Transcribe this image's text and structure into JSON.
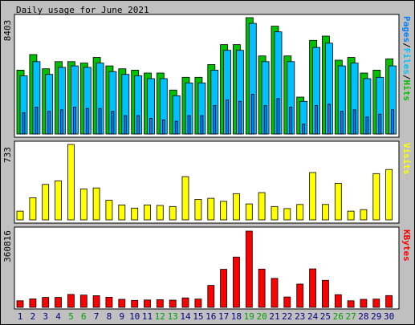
{
  "chart_data": {
    "title": "Daily usage for June 2021",
    "x_labels": [
      "1",
      "2",
      "3",
      "4",
      "5",
      "6",
      "7",
      "8",
      "9",
      "10",
      "11",
      "12",
      "13",
      "14",
      "15",
      "16",
      "17",
      "18",
      "19",
      "20",
      "21",
      "22",
      "23",
      "24",
      "25",
      "26",
      "27",
      "28",
      "29",
      "30"
    ],
    "weekend_days": [
      5,
      6,
      12,
      13,
      19,
      20,
      26,
      27
    ],
    "panels": [
      {
        "type": "bar",
        "max_label": "8403",
        "series": [
          {
            "name": "Hits",
            "color": "#00c000",
            "values": [
              4500,
              5600,
              4600,
              5100,
              5100,
              5000,
              5400,
              4800,
              4600,
              4500,
              4300,
              4300,
              3100,
              4000,
              4000,
              4900,
              6300,
              6300,
              8200,
              5500,
              7600,
              5500,
              2600,
              6600,
              6900,
              5200,
              5400,
              4300,
              4500,
              5300
            ]
          },
          {
            "name": "Files",
            "color": "#00c0ff",
            "values": [
              4100,
              5100,
              4200,
              4700,
              4800,
              4700,
              5000,
              4400,
              4200,
              4100,
              3900,
              3900,
              2700,
              3600,
              3600,
              4500,
              5900,
              5900,
              7800,
              5100,
              7200,
              5100,
              2300,
              6100,
              6400,
              4800,
              5000,
              3900,
              4000,
              4800
            ]
          },
          {
            "name": "Pages",
            "color": "#0080ff",
            "values": [
              1500,
              1900,
              1600,
              1700,
              1900,
              1800,
              1800,
              1600,
              1300,
              1300,
              1100,
              1000,
              900,
              1300,
              1300,
              2000,
              2400,
              2300,
              2800,
              2000,
              2500,
              1900,
              700,
              2000,
              2100,
              1600,
              1700,
              1200,
              1400,
              1700
            ]
          }
        ]
      },
      {
        "type": "bar",
        "max_label": "733",
        "series": [
          {
            "name": "Visits",
            "color": "#ffff00",
            "values": [
              85,
              215,
              345,
              380,
              733,
              300,
              310,
              190,
              145,
              115,
              145,
              140,
              130,
              420,
              200,
              210,
              180,
              255,
              155,
              265,
              130,
              110,
              150,
              460,
              150,
              355,
              85,
              100,
              450,
              490
            ]
          }
        ]
      },
      {
        "type": "bar",
        "max_label": "360816",
        "series": [
          {
            "name": "KBytes",
            "color": "#ff0000",
            "values": [
              31000,
              40000,
              47000,
              47000,
              61000,
              58000,
              55000,
              48000,
              38000,
              33000,
              35000,
              36000,
              34000,
              45000,
              39000,
              104000,
              180000,
              238000,
              360816,
              181000,
              137000,
              49000,
              110000,
              182000,
              128000,
              60000,
              31000,
              38000,
              39000,
              56000
            ]
          }
        ]
      }
    ],
    "legend_labels": [
      {
        "parts": [
          {
            "text": "Pages",
            "color": "#0080ff"
          },
          {
            "text": "/",
            "color": "#000000"
          },
          {
            "text": "Files",
            "color": "#00c0ff"
          },
          {
            "text": "/",
            "color": "#000000"
          },
          {
            "text": "Hits",
            "color": "#00c000"
          }
        ]
      },
      {
        "parts": [
          {
            "text": "Visits",
            "color": "#ffff00"
          }
        ]
      },
      {
        "parts": [
          {
            "text": "KBytes",
            "color": "#ff0000"
          }
        ]
      }
    ],
    "colors": {
      "background": "#c0c0c0",
      "panel": "#ffffff",
      "weekday_label": "#000080",
      "weekend_label": "#00a000"
    }
  }
}
